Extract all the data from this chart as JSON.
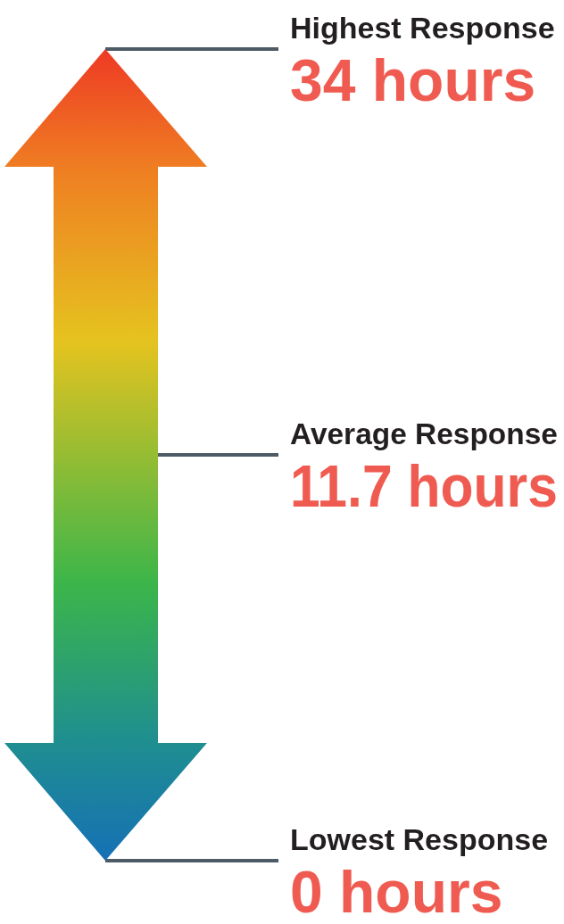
{
  "chart_data": {
    "type": "other",
    "categories": [
      "Highest Response",
      "Average Response",
      "Lowest Response"
    ],
    "values": [
      34,
      11.7,
      0
    ],
    "value_labels": [
      "34 hours",
      "11.7 hours",
      "0 hours"
    ],
    "color": "#ef5b50"
  }
}
